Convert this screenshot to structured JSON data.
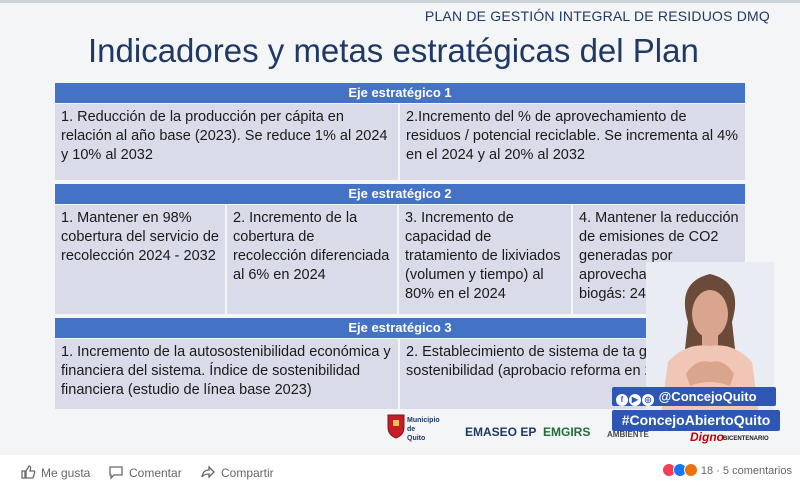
{
  "slide": {
    "plan_header": "PLAN DE GESTIÓN INTEGRAL DE RESIDUOS DMQ",
    "title": "Indicadores y metas estratégicas del Plan",
    "eje1": {
      "label": "Eje estratégico 1",
      "cells": [
        "1. Reducción de la producción per cápita en relación al año base (2023).  Se reduce 1% al 2024 y 10% al 2032",
        "2.Incremento del % de aprovechamiento de residuos / potencial reciclable. Se incrementa al 4% en el 2024 y al 20% al 2032"
      ]
    },
    "eje2": {
      "label": "Eje estratégico 2",
      "cells": [
        "1. Mantener en 98% cobertura del servicio de recolección 2024 - 2032",
        "2. Incremento de la cobertura de recolección diferenciada al 6% en 2024",
        "3. Incremento de capacidad de tratamiento de lixiviados (volumen y tiempo) al 80% en el 2024",
        "4. Mantener la reducción de emisiones de CO2 generadas por aprovechamiento biogás: 240.000 por año"
      ]
    },
    "eje3": {
      "label": "Eje estratégico 3",
      "cells": [
        "1. Incremento de la autosostenibilidad económica y financiera del sistema. Índice de sostenibilidad financiera (estudio de línea base 2023)",
        "2. Establecimiento de sistema de ta garanticen sostenibilidad (aprobacio reforma en 2023)"
      ]
    }
  },
  "overlay": {
    "handle": "@ConcejoQuito",
    "hashtag": "#ConcejoAbiertoQuito",
    "digno": "Digno",
    "logos": {
      "municipio": "Municipio de Quito",
      "emaseo": "EMASEO EP",
      "emgirs": "EMGIRS",
      "ambiente": "AMBIENTE",
      "bicentenario": "BICENTENARIO"
    }
  },
  "actions": {
    "like": "Me gusta",
    "comment": "Comentar",
    "share": "Compartir"
  },
  "reactions": {
    "count": "18",
    "separator": "·",
    "comments": "5 comentarios"
  },
  "colors": {
    "band": "#4472c4",
    "cell": "#d9dbe9",
    "title": "#1f3864",
    "badge": "#2e57b5"
  }
}
